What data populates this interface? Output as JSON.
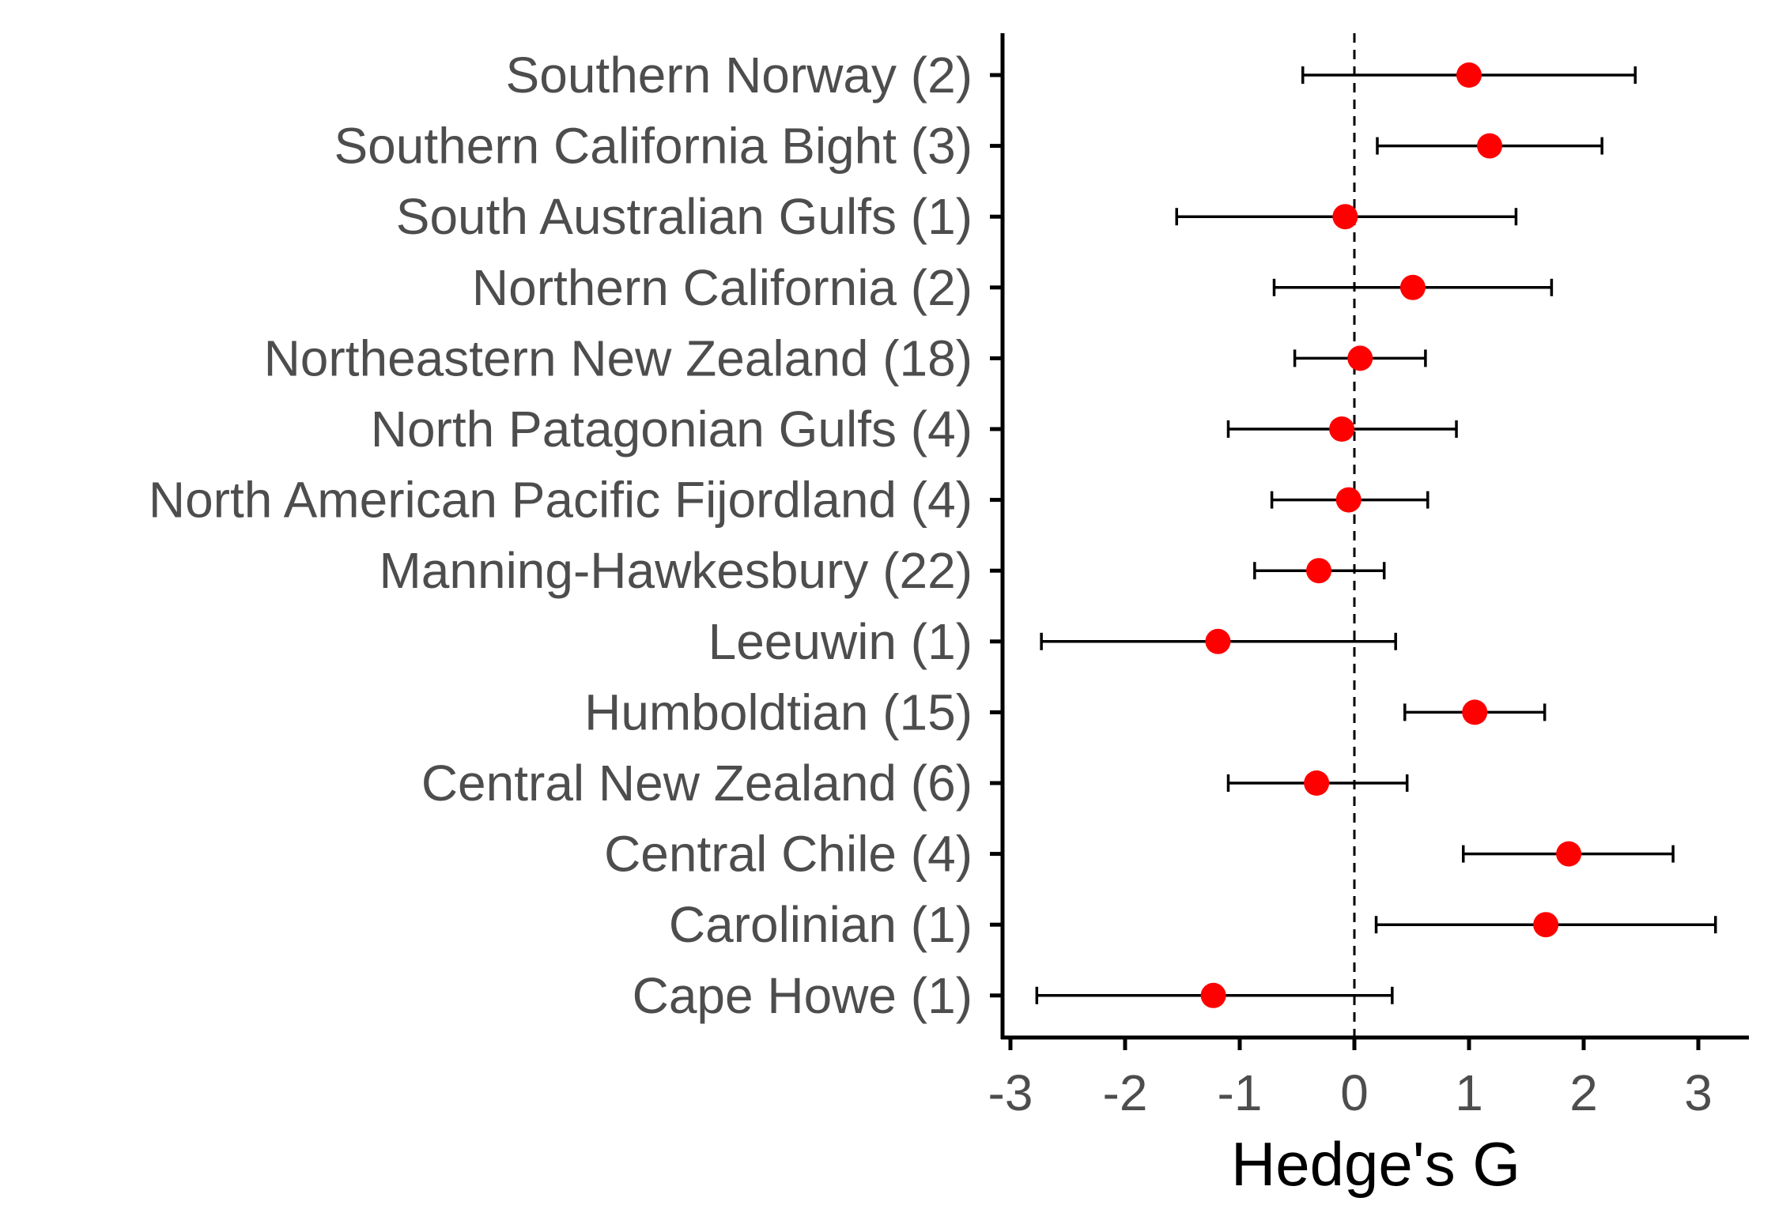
{
  "chart_data": {
    "type": "scatter",
    "title": "",
    "xlabel": "Hedge's G",
    "ylabel": "",
    "xlim": [
      -3.05,
      3.45
    ],
    "xticks": [
      -3,
      -2,
      -1,
      0,
      1,
      2,
      3
    ],
    "xtick_labels": [
      "-3",
      "-2",
      "-1",
      "0",
      "1",
      "2",
      "3"
    ],
    "reference_line_x": 0,
    "grid": false,
    "legend": "none",
    "colors": {
      "point": "#ff0000",
      "errorbar": "#000000",
      "axis": "#000000",
      "label": "#4d4d4d"
    },
    "categories": [
      "Southern Norway (2)",
      "Southern California Bight (3)",
      "South Australian Gulfs (1)",
      "Northern California (2)",
      "Northeastern New Zealand (18)",
      "North Patagonian Gulfs (4)",
      "North American Pacific Fijordland (4)",
      "Manning-Hawkesbury (22)",
      "Leeuwin (1)",
      "Humboldtian (15)",
      "Central New Zealand (6)",
      "Central Chile (4)",
      "Carolinian (1)",
      "Cape Howe (1)"
    ],
    "series": [
      {
        "values": [
          1.0,
          1.18,
          -0.08,
          0.51,
          0.05,
          -0.11,
          -0.05,
          -0.31,
          -1.19,
          1.05,
          -0.33,
          1.87,
          1.67,
          -1.23
        ],
        "lower": [
          -0.45,
          0.2,
          -1.55,
          -0.7,
          -0.52,
          -1.1,
          -0.72,
          -0.87,
          -2.73,
          0.44,
          -1.1,
          0.95,
          0.19,
          -2.77
        ],
        "upper": [
          2.45,
          2.16,
          1.41,
          1.72,
          0.62,
          0.89,
          0.64,
          0.26,
          0.36,
          1.66,
          0.46,
          2.78,
          3.15,
          0.33
        ]
      }
    ]
  }
}
